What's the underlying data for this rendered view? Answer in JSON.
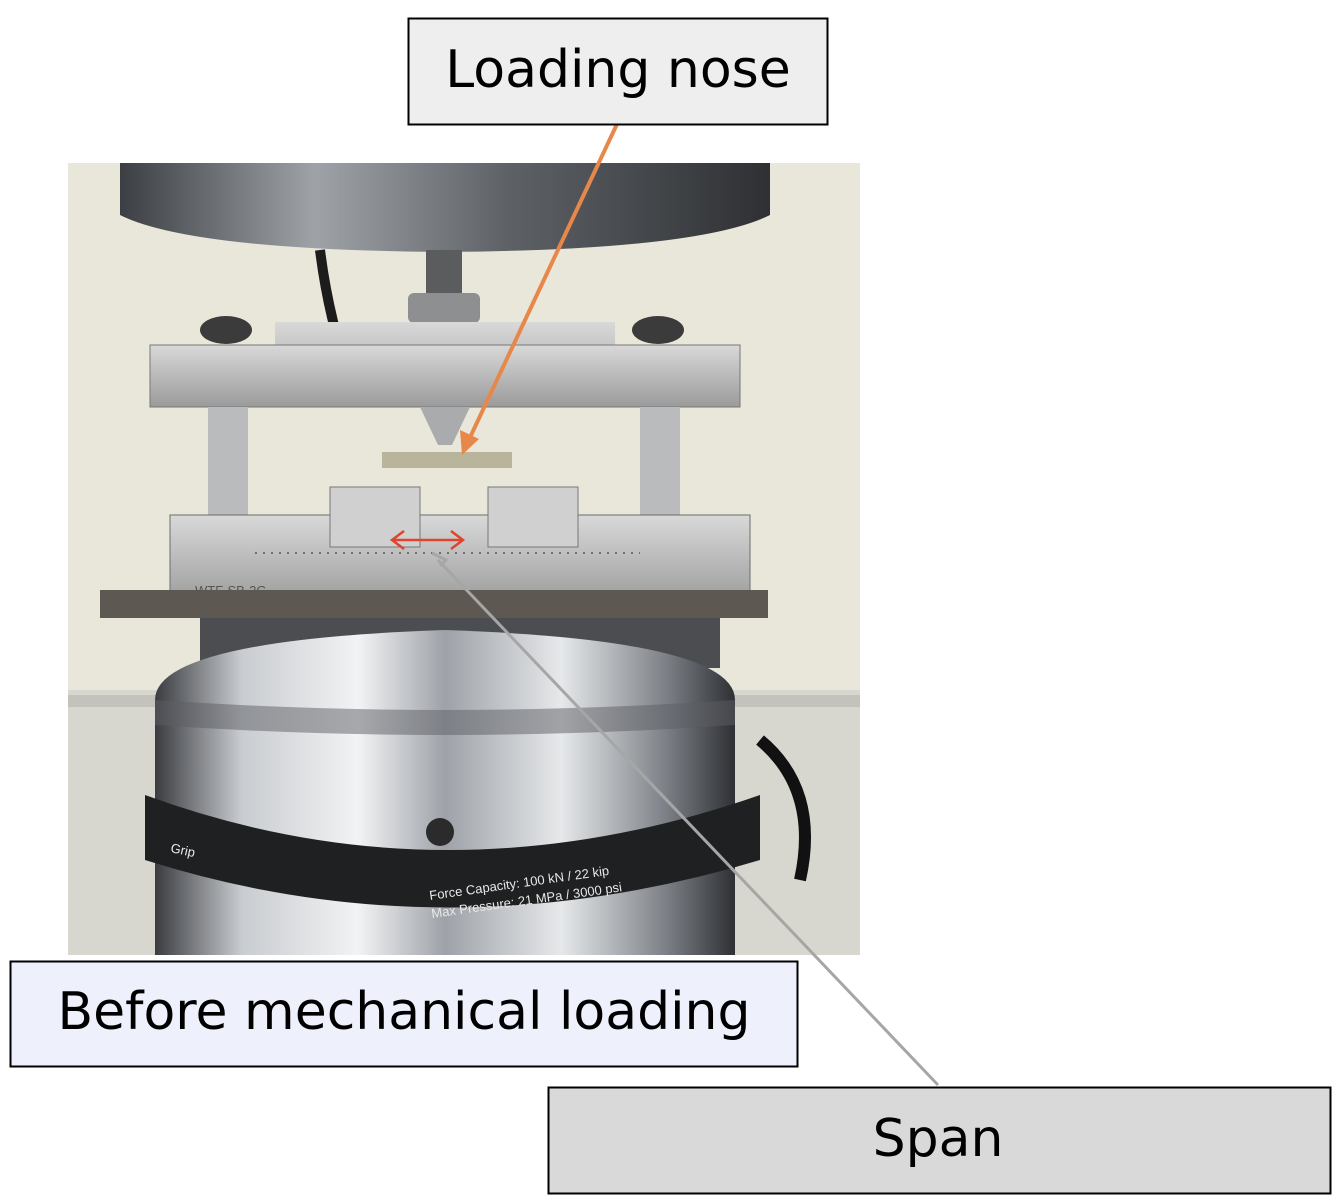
{
  "labels": {
    "loading_nose": "Loading nose",
    "caption": "Before mechanical loading",
    "span": "Span"
  },
  "photo_text": {
    "force_capacity": "Force Capacity:  100 kN / 22 kip",
    "max_pressure": "Max Pressure:  21 MPa / 3000 psi",
    "grip": "Grip",
    "fixture_id": "WTF-SB-2G"
  }
}
